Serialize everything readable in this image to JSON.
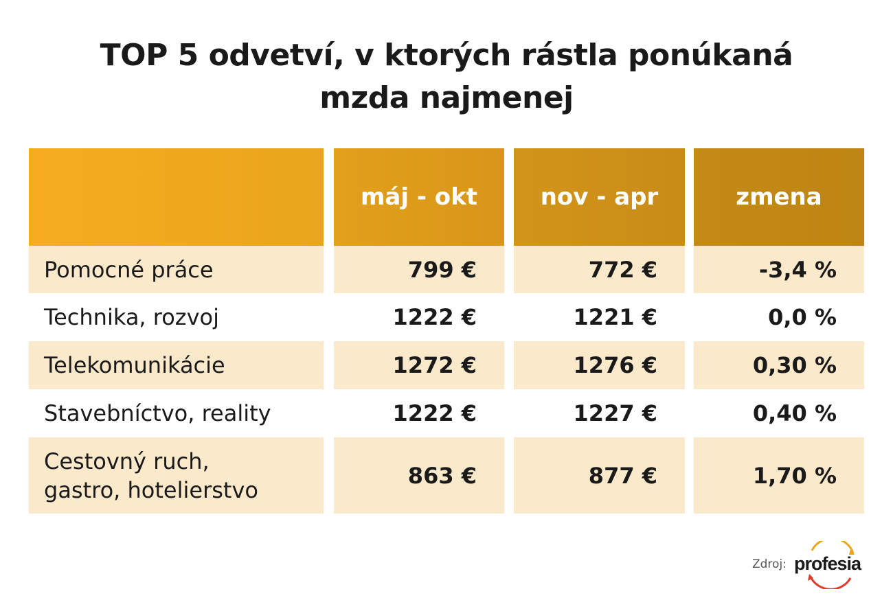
{
  "title_line1": "TOP 5 odvetví, v ktorých rástla ponúkaná",
  "title_line2": "mzda najmenej",
  "columns": [
    "",
    "máj - okt",
    "nov - apr",
    "zmena"
  ],
  "rows": [
    {
      "label": "Pomocné práce",
      "may_oct": "799 €",
      "nov_apr": "772 €",
      "change": "-3,4 %"
    },
    {
      "label": "Technika, rozvoj",
      "may_oct": "1222 €",
      "nov_apr": "1221 €",
      "change": "0,0 %"
    },
    {
      "label": "Telekomunikácie",
      "may_oct": "1272 €",
      "nov_apr": "1276 €",
      "change": "0,30 %"
    },
    {
      "label": "Stavebníctvo, reality",
      "may_oct": "1222 €",
      "nov_apr": "1227 €",
      "change": "0,40 %"
    },
    {
      "label": "Cestovný ruch, gastro, hotelierstvo",
      "may_oct": "863 €",
      "nov_apr": "877 €",
      "change": "1,70 %"
    }
  ],
  "source_label": "Zdroj:",
  "logo_text": "profesia",
  "colors": {
    "header_start": "#f6ac1e",
    "header_end": "#be8514",
    "row_shade": "#fbe9cc"
  }
}
